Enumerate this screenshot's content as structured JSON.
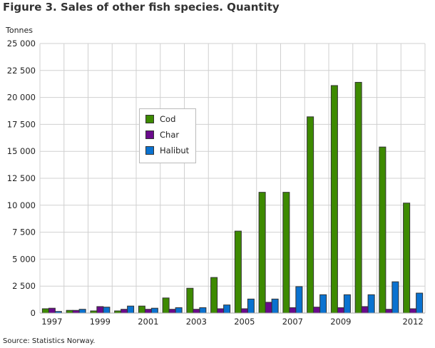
{
  "chart_data": {
    "type": "bar",
    "title": "Figure 3. Sales of other fish species. Quantity",
    "ylabel": "Tonnes",
    "xlabel": "",
    "source": "Source: Statistics Norway.",
    "ylim": [
      0,
      25000
    ],
    "yticks": [
      0,
      2500,
      5000,
      7500,
      10000,
      12500,
      15000,
      17500,
      20000,
      22500,
      25000
    ],
    "ytick_labels": [
      "0",
      "2 500",
      "5 000",
      "7 500",
      "10 000",
      "12 500",
      "15 000",
      "17 500",
      "20 000",
      "22 500",
      "25 000"
    ],
    "categories": [
      "1997",
      "1998",
      "1999",
      "2000",
      "2001",
      "2002",
      "2003",
      "2004",
      "2005",
      "2006",
      "2007",
      "2008",
      "2009",
      "2010",
      "2011",
      "2012"
    ],
    "xtick_labels": [
      "1997",
      "",
      "1999",
      "",
      "2001",
      "",
      "2003",
      "",
      "2005",
      "",
      "2007",
      "",
      "2009",
      "",
      "",
      "2012"
    ],
    "grid": true,
    "legend_position": "inside-left",
    "series": [
      {
        "name": "Cod",
        "color": "#3d8a00",
        "values": [
          400,
          250,
          200,
          200,
          650,
          1400,
          2300,
          3300,
          7600,
          11200,
          11200,
          18200,
          21100,
          21400,
          15400,
          10200
        ]
      },
      {
        "name": "Char",
        "color": "#6a0a8c",
        "values": [
          450,
          250,
          600,
          350,
          350,
          350,
          350,
          400,
          400,
          1000,
          500,
          550,
          500,
          600,
          350,
          400
        ]
      },
      {
        "name": "Halibut",
        "color": "#0a72d0",
        "values": [
          150,
          350,
          550,
          650,
          450,
          500,
          500,
          750,
          1300,
          1300,
          2450,
          1700,
          1700,
          1700,
          2900,
          1850
        ]
      }
    ]
  }
}
